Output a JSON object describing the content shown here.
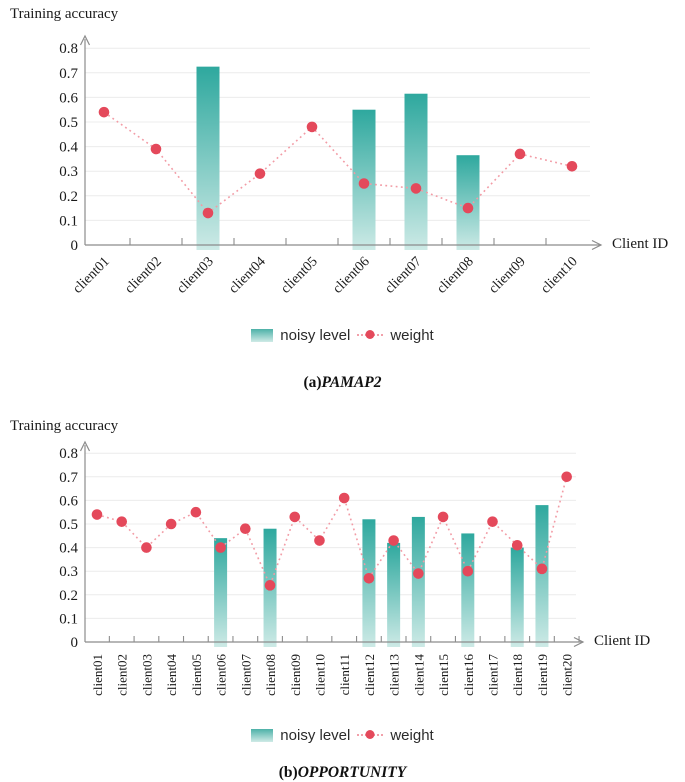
{
  "colors": {
    "bar_top": "#2ea89e",
    "bar_bottom": "#cdeae6",
    "dot": "#e4495b",
    "line": "#f29ba5",
    "grid": "#ececec",
    "axis": "#8c8c8c",
    "text": "#1a1a1a"
  },
  "chart_data": [
    {
      "type": "bar+line",
      "title": "Training accuracy",
      "xlabel": "Client ID",
      "ylabel": "Training accuracy",
      "caption_prefix": "(a)",
      "caption_name": "PAMAP2",
      "ylim": [
        0,
        0.8
      ],
      "grid": true,
      "legend_position": "bottom",
      "y_ticks": [
        "0",
        "0.1",
        "0.2",
        "0.3",
        "0.4",
        "0.5",
        "0.6",
        "0.7",
        "0.8"
      ],
      "categories": [
        "client01",
        "client02",
        "client03",
        "client04",
        "client05",
        "client06",
        "client07",
        "client08",
        "client09",
        "client10"
      ],
      "series": [
        {
          "name": "noisy level",
          "type": "bar",
          "values": [
            0,
            0,
            0.725,
            0,
            0,
            0.55,
            0.615,
            0.365,
            0,
            0
          ]
        },
        {
          "name": "weight",
          "type": "line",
          "values": [
            0.54,
            0.39,
            0.13,
            0.29,
            0.48,
            0.25,
            0.23,
            0.15,
            0.37,
            0.32
          ]
        }
      ]
    },
    {
      "type": "bar+line",
      "title": "Training accuracy",
      "xlabel": "Client ID",
      "ylabel": "Training accuracy",
      "caption_prefix": "(b)",
      "caption_name": "OPPORTUNITY",
      "ylim": [
        0,
        0.8
      ],
      "grid": true,
      "legend_position": "bottom",
      "y_ticks": [
        "0",
        "0.1",
        "0.2",
        "0.3",
        "0.4",
        "0.5",
        "0.6",
        "0.7",
        "0.8"
      ],
      "categories": [
        "client01",
        "client02",
        "client03",
        "client04",
        "client05",
        "client06",
        "client07",
        "client08",
        "client09",
        "client10",
        "client11",
        "client12",
        "client13",
        "client14",
        "client15",
        "client16",
        "client17",
        "client18",
        "client19",
        "client20"
      ],
      "series": [
        {
          "name": "noisy level",
          "type": "bar",
          "values": [
            0,
            0,
            0,
            0,
            0,
            0.44,
            0,
            0.48,
            0,
            0,
            0,
            0.52,
            0.42,
            0.53,
            0,
            0.46,
            0,
            0.4,
            0.58,
            0
          ]
        },
        {
          "name": "weight",
          "type": "line",
          "values": [
            0.54,
            0.51,
            0.4,
            0.5,
            0.55,
            0.4,
            0.48,
            0.24,
            0.53,
            0.43,
            0.61,
            0.27,
            0.43,
            0.29,
            0.53,
            0.3,
            0.51,
            0.41,
            0.31,
            0.7
          ]
        }
      ]
    }
  ]
}
